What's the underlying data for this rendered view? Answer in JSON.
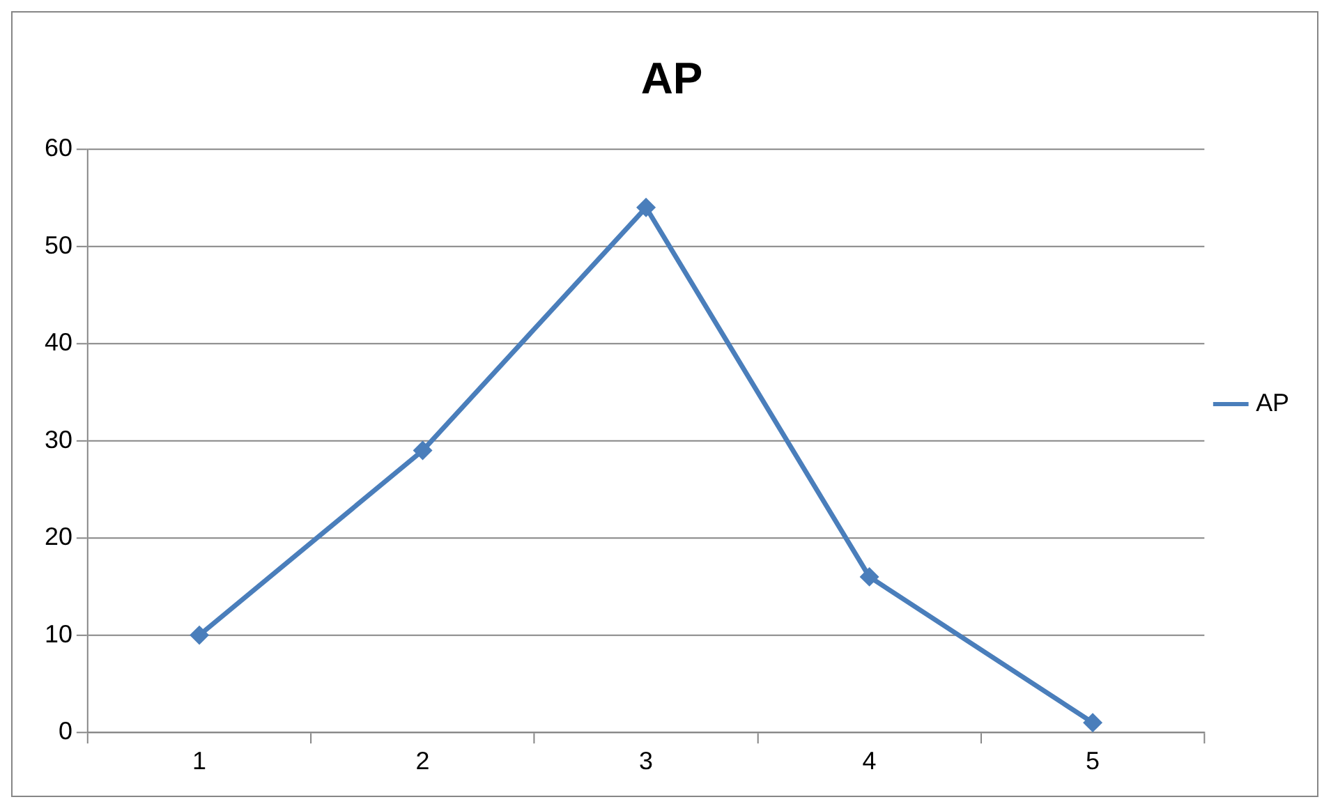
{
  "chart_data": {
    "type": "line",
    "title": "AP",
    "categories": [
      "1",
      "2",
      "3",
      "4",
      "5"
    ],
    "series": [
      {
        "name": "AP",
        "color": "#4a7ebb",
        "values": [
          10,
          29,
          54,
          16,
          1
        ]
      }
    ],
    "ylim": [
      0,
      60
    ],
    "yticks": [
      0,
      10,
      20,
      30,
      40,
      50,
      60
    ],
    "grid": "y",
    "legend": "right",
    "marker": "diamond",
    "line_style": "solid"
  }
}
